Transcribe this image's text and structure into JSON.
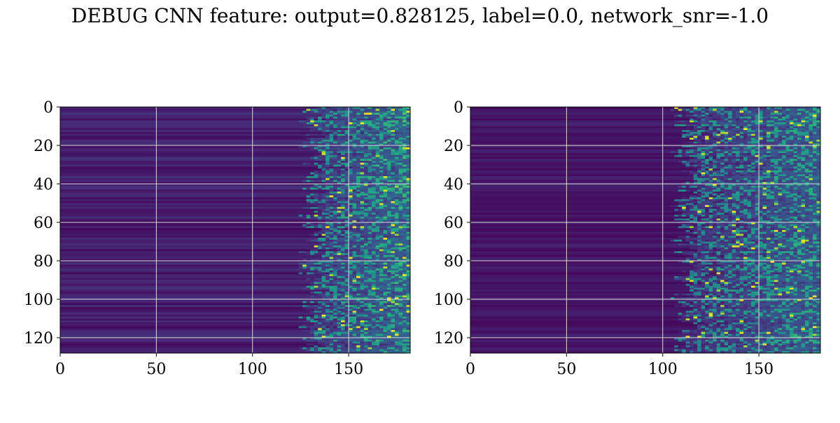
{
  "figure": {
    "title": "DEBUG CNN feature: output=0.828125, label=0.0, network_snr=-1.0"
  },
  "chart_data": [
    {
      "type": "heatmap",
      "title": "",
      "xlabel": "",
      "ylabel": "",
      "x_range": [
        0,
        182
      ],
      "y_range": [
        0,
        128
      ],
      "y_inverted": true,
      "x_ticks": [
        "0",
        "50",
        "100",
        "150"
      ],
      "y_ticks": [
        "0",
        "20",
        "40",
        "60",
        "80",
        "100",
        "120"
      ],
      "grid": true,
      "colormap": "viridis",
      "pattern": "mostly dark rows with faint horizontal banding; bright activations concentrated at x>130",
      "onset_column": 130
    },
    {
      "type": "heatmap",
      "title": "",
      "xlabel": "",
      "ylabel": "",
      "x_range": [
        0,
        182
      ],
      "y_range": [
        0,
        128
      ],
      "y_inverted": true,
      "x_ticks": [
        "0",
        "50",
        "100",
        "150"
      ],
      "y_ticks": [
        "0",
        "20",
        "40",
        "60",
        "80",
        "100",
        "120"
      ],
      "grid": true,
      "colormap": "viridis",
      "pattern": "mostly dark rows; bright activations concentrated at x>110",
      "onset_column": 110
    }
  ],
  "colors": {
    "viridis_low": "#440154",
    "viridis_mid": "#21918c",
    "viridis_high": "#fde725",
    "grid": "#d9d9d9"
  }
}
